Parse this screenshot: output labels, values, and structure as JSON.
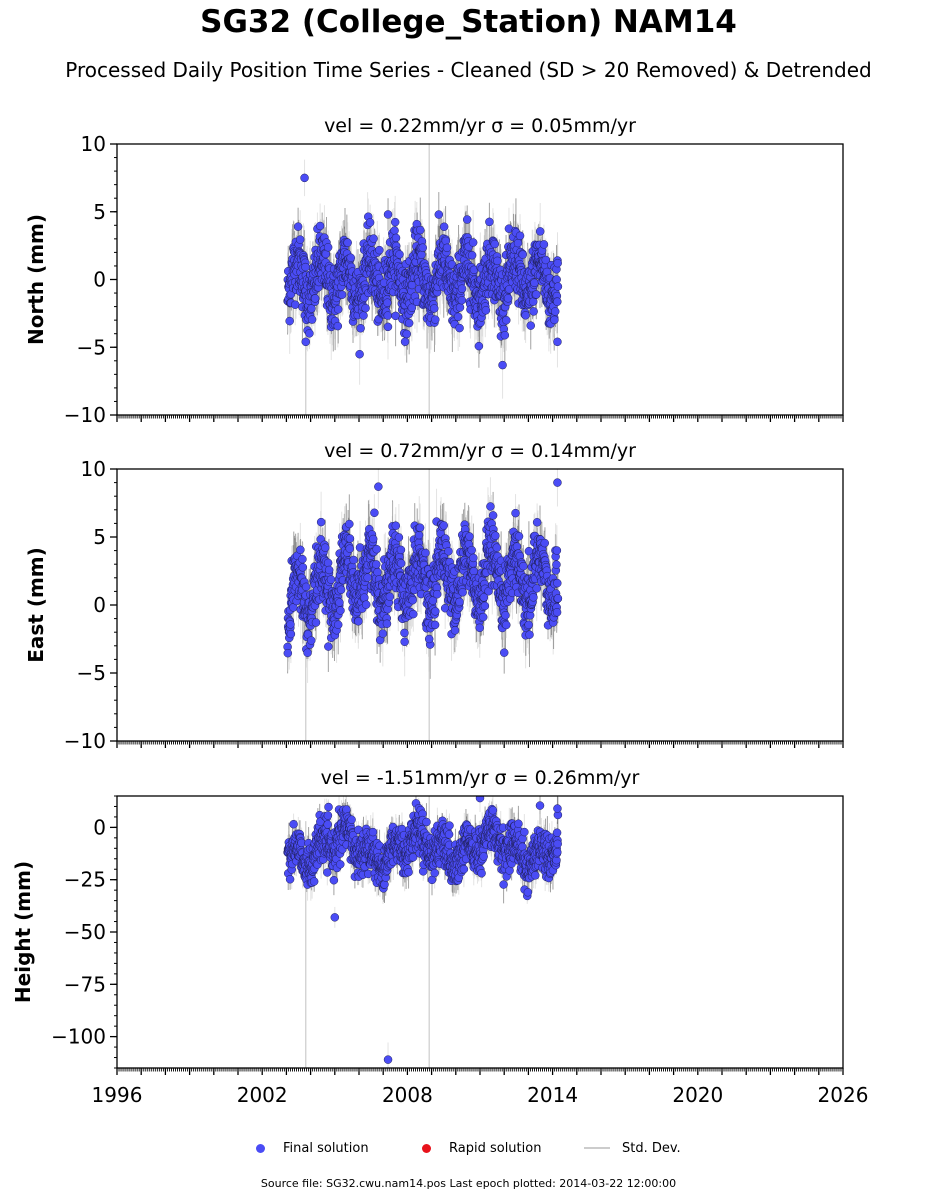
{
  "header": {
    "title": "SG32 (College_Station) NAM14",
    "subtitle": "Processed Daily Position Time Series - Cleaned (SD > 20 Removed) & Detrended"
  },
  "legend": {
    "final_label": "Final solution",
    "rapid_label": "Rapid solution",
    "std_label": "Std. Dev.",
    "final_color": "#4a4cf5",
    "rapid_color": "#e8121b",
    "std_color": "#cccccc"
  },
  "footer": {
    "text": "Source file: SG32.cwu.nam14.pos  Last epoch plotted: 2014-03-22 12:00:00"
  },
  "chart_data": [
    {
      "type": "scatter",
      "title": "vel = 0.22mm/yr   σ = 0.05mm/yr",
      "ylabel": "North (mm)",
      "xlim": [
        1996,
        2026
      ],
      "ylim": [
        -10,
        10
      ],
      "yticks": [
        -10,
        -5,
        0,
        5,
        10
      ],
      "ytick_labels": [
        "−10",
        "−5",
        "0",
        "5",
        "10"
      ],
      "x_range": [
        2003.05,
        2014.22
      ],
      "series": {
        "amplitude": 1.5,
        "noise": 1.2,
        "trend": 0.0,
        "outliers": [
          {
            "x": 2003.75,
            "y": 7.5
          },
          {
            "x": 2003.8,
            "y": -4.6
          },
          {
            "x": 2007.2,
            "y": 4.8
          },
          {
            "x": 2014.2,
            "y": -4.6
          }
        ]
      }
    },
    {
      "type": "scatter",
      "title": "vel = 0.72mm/yr   σ = 0.14mm/yr",
      "ylabel": "East (mm)",
      "xlim": [
        1996,
        2026
      ],
      "ylim": [
        -10,
        10
      ],
      "yticks": [
        -10,
        -5,
        0,
        5,
        10
      ],
      "ytick_labels": [
        "−10",
        "−5",
        "0",
        "5",
        "10"
      ],
      "x_range": [
        2003.05,
        2014.22
      ],
      "series": {
        "amplitude": 2.0,
        "noise": 1.2,
        "trend": 0.0,
        "outliers": [
          {
            "x": 2006.8,
            "y": 8.7
          },
          {
            "x": 2014.2,
            "y": 9.0
          },
          {
            "x": 2008.9,
            "y": -2.5
          }
        ]
      }
    },
    {
      "type": "scatter",
      "title": "vel = -1.51mm/yr   σ = 0.26mm/yr",
      "ylabel": "Height (mm)",
      "xlim": [
        1996,
        2026
      ],
      "ylim": [
        -115,
        15
      ],
      "yticks": [
        -100,
        -75,
        -50,
        -25,
        0
      ],
      "ytick_labels": [
        "−100",
        "−75",
        "−50",
        "−25",
        "0"
      ],
      "x_range": [
        2003.05,
        2014.22
      ],
      "series": {
        "amplitude": 5.0,
        "noise": 5.0,
        "trend": -10.0,
        "outliers": [
          {
            "x": 2007.2,
            "y": -111
          },
          {
            "x": 2005.0,
            "y": -43
          },
          {
            "x": 2014.2,
            "y": 9
          },
          {
            "x": 2011.0,
            "y": 14
          }
        ]
      }
    }
  ],
  "x_axis": {
    "ticks": [
      1996,
      2002,
      2008,
      2014,
      2020,
      2026
    ],
    "tick_labels": [
      "1996",
      "2002",
      "2008",
      "2014",
      "2020",
      "2026"
    ]
  }
}
